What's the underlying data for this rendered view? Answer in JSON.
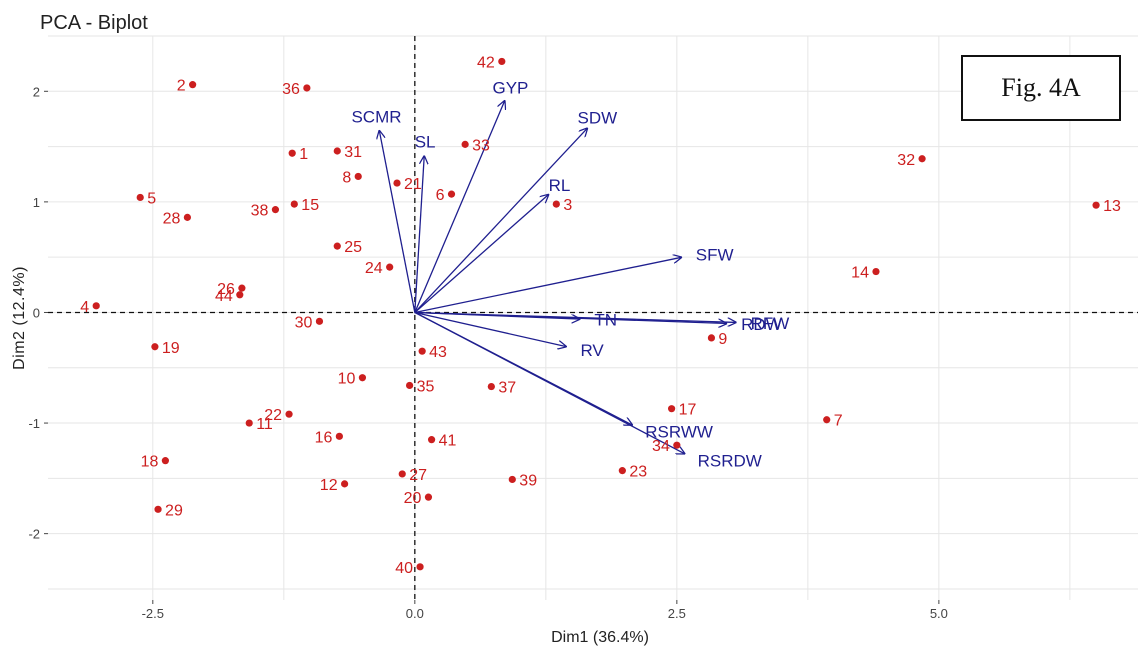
{
  "colors": {
    "points": "#cc1f1f",
    "arrows": "#1f1f8f",
    "grid": "#e6e6e6",
    "axis_text": "#444444"
  },
  "figure_label": "Fig. 4A",
  "chart_data": {
    "type": "scatter",
    "title": "PCA - Biplot",
    "xlabel": "Dim1 (36.4%)",
    "ylabel": "Dim2 (12.4%)",
    "xlim": [
      -3.5,
      6.9
    ],
    "ylim": [
      -2.6,
      2.5
    ],
    "x_ticks": [
      -2.5,
      0.0,
      2.5,
      5.0
    ],
    "x_tick_labels": [
      "-2.5",
      "0.0",
      "2.5",
      "5.0"
    ],
    "y_ticks": [
      -2,
      -1,
      0,
      1,
      2
    ],
    "y_tick_labels": [
      "-2",
      "-1",
      "0",
      "1",
      "2"
    ],
    "grid": true,
    "reference_lines": {
      "x": 0,
      "y": 0,
      "style": "dashed"
    },
    "individuals": [
      {
        "label": "1",
        "x": -1.17,
        "y": 1.44
      },
      {
        "label": "2",
        "x": -2.12,
        "y": 2.06
      },
      {
        "label": "3",
        "x": 1.35,
        "y": 0.98
      },
      {
        "label": "4",
        "x": -3.04,
        "y": 0.06
      },
      {
        "label": "5",
        "x": -2.62,
        "y": 1.04
      },
      {
        "label": "6",
        "x": 0.35,
        "y": 1.07
      },
      {
        "label": "7",
        "x": 3.93,
        "y": -0.97
      },
      {
        "label": "8",
        "x": -0.54,
        "y": 1.23
      },
      {
        "label": "9",
        "x": 2.83,
        "y": -0.23
      },
      {
        "label": "10",
        "x": -0.5,
        "y": -0.59
      },
      {
        "label": "11",
        "x": -1.58,
        "y": -1.0
      },
      {
        "label": "12",
        "x": -0.67,
        "y": -1.55
      },
      {
        "label": "13",
        "x": 6.5,
        "y": 0.97
      },
      {
        "label": "14",
        "x": 4.4,
        "y": 0.37
      },
      {
        "label": "15",
        "x": -1.15,
        "y": 0.98
      },
      {
        "label": "16",
        "x": -0.72,
        "y": -1.12
      },
      {
        "label": "17",
        "x": 2.45,
        "y": -0.87
      },
      {
        "label": "18",
        "x": -2.38,
        "y": -1.34
      },
      {
        "label": "19",
        "x": -2.48,
        "y": -0.31
      },
      {
        "label": "20",
        "x": 0.13,
        "y": -1.67
      },
      {
        "label": "21",
        "x": -0.17,
        "y": 1.17
      },
      {
        "label": "22",
        "x": -1.2,
        "y": -0.92
      },
      {
        "label": "23",
        "x": 1.98,
        "y": -1.43
      },
      {
        "label": "24",
        "x": -0.24,
        "y": 0.41
      },
      {
        "label": "25",
        "x": -0.74,
        "y": 0.6
      },
      {
        "label": "26",
        "x": -1.65,
        "y": 0.22
      },
      {
        "label": "27",
        "x": -0.12,
        "y": -1.46
      },
      {
        "label": "28",
        "x": -2.17,
        "y": 0.86
      },
      {
        "label": "29",
        "x": -2.45,
        "y": -1.78
      },
      {
        "label": "30",
        "x": -0.91,
        "y": -0.08
      },
      {
        "label": "31",
        "x": -0.74,
        "y": 1.46
      },
      {
        "label": "32",
        "x": 4.84,
        "y": 1.39
      },
      {
        "label": "33",
        "x": 0.48,
        "y": 1.52
      },
      {
        "label": "34",
        "x": 2.5,
        "y": -1.2
      },
      {
        "label": "35",
        "x": -0.05,
        "y": -0.66
      },
      {
        "label": "36",
        "x": -1.03,
        "y": 2.03
      },
      {
        "label": "37",
        "x": 0.73,
        "y": -0.67
      },
      {
        "label": "38",
        "x": -1.33,
        "y": 0.93
      },
      {
        "label": "39",
        "x": 0.93,
        "y": -1.51
      },
      {
        "label": "40",
        "x": 0.05,
        "y": -2.3
      },
      {
        "label": "41",
        "x": 0.16,
        "y": -1.15
      },
      {
        "label": "42",
        "x": 0.83,
        "y": 2.27
      },
      {
        "label": "43",
        "x": 0.07,
        "y": -0.35
      },
      {
        "label": "44",
        "x": -1.67,
        "y": 0.16
      }
    ],
    "variables": [
      {
        "label": "SCMR",
        "x": -0.34,
        "y": 1.65
      },
      {
        "label": "SL",
        "x": 0.09,
        "y": 1.42
      },
      {
        "label": "GYP",
        "x": 0.86,
        "y": 1.92
      },
      {
        "label": "SDW",
        "x": 1.65,
        "y": 1.67
      },
      {
        "label": "RL",
        "x": 1.28,
        "y": 1.07
      },
      {
        "label": "SFW",
        "x": 2.55,
        "y": 0.5
      },
      {
        "label": "TN",
        "x": 1.58,
        "y": -0.06
      },
      {
        "label": "RFW",
        "x": 3.07,
        "y": -0.09
      },
      {
        "label": "RDW",
        "x": 2.98,
        "y": -0.1
      },
      {
        "label": "RV",
        "x": 1.45,
        "y": -0.31
      },
      {
        "label": "RSRWW",
        "x": 2.08,
        "y": -1.02
      },
      {
        "label": "RSRDW",
        "x": 2.58,
        "y": -1.28
      }
    ]
  }
}
